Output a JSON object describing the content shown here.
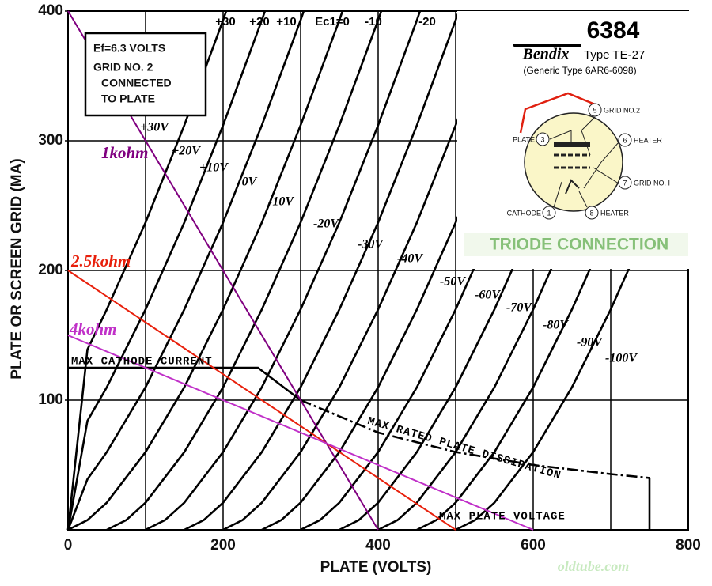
{
  "chart_data": {
    "type": "line",
    "x_label": "PLATE (VOLTS)",
    "y_label": "PLATE OR SCREEN GRID (MA)",
    "xlim": [
      0,
      800
    ],
    "ylim": [
      0,
      400
    ],
    "xticks": [
      0,
      200,
      400,
      600,
      800
    ],
    "yticks": [
      100,
      200,
      300,
      400
    ],
    "x_minor_grid": [
      100,
      300,
      500,
      700
    ],
    "y_grid": [
      100,
      200,
      300
    ],
    "grid": true,
    "curve_color": "#000000",
    "top_labels": [
      "+30",
      "+20",
      "+10",
      "Ec1=0",
      "-10",
      "-20"
    ],
    "note": [
      "Ef=6.3 VOLTS",
      "GRID NO. 2",
      "CONNECTED",
      "TO PLATE"
    ],
    "series": [
      {
        "name": "+30V",
        "x": [
          0,
          25,
          50,
          100,
          150,
          200,
          204
        ],
        "values": [
          0,
          139,
          170,
          237,
          312,
          393,
          400
        ]
      },
      {
        "name": "+20V",
        "x": [
          0,
          25,
          50,
          100,
          150,
          200,
          250,
          254
        ],
        "values": [
          0,
          84,
          110,
          170,
          237,
          312,
          393,
          400
        ]
      },
      {
        "name": "+10V",
        "x": [
          0,
          25,
          50,
          100,
          150,
          200,
          250,
          300,
          304
        ],
        "values": [
          0,
          39,
          60,
          110,
          170,
          237,
          312,
          393,
          400
        ]
      },
      {
        "name": "0V",
        "x": [
          0,
          25,
          50,
          100,
          150,
          200,
          250,
          300,
          350,
          354
        ],
        "values": [
          0,
          7.5,
          21,
          60,
          110,
          170,
          237,
          312,
          393,
          400
        ]
      },
      {
        "name": "-10V",
        "x": [
          50,
          75,
          100,
          150,
          200,
          250,
          300,
          350,
          400,
          404
        ],
        "values": [
          0,
          7.5,
          21,
          60,
          110,
          170,
          237,
          312,
          393,
          400
        ]
      },
      {
        "name": "-20V",
        "x": [
          100,
          125,
          150,
          200,
          250,
          300,
          350,
          400,
          450,
          454
        ],
        "values": [
          0,
          7.5,
          21,
          60,
          110,
          170,
          237,
          312,
          393,
          400
        ]
      },
      {
        "name": "-30V",
        "x": [
          150,
          175,
          200,
          250,
          300,
          350,
          400,
          450,
          500,
          504
        ],
        "values": [
          0,
          7.5,
          21,
          60,
          110,
          170,
          237,
          312,
          393,
          400
        ]
      },
      {
        "name": "-40V",
        "x": [
          200,
          225,
          250,
          300,
          350,
          400,
          450,
          500,
          550,
          554
        ],
        "values": [
          0,
          7.5,
          21,
          60,
          110,
          170,
          237,
          312,
          393,
          400
        ]
      },
      {
        "name": "-50V",
        "x": [
          250,
          275,
          300,
          350,
          400,
          450,
          500,
          550,
          600,
          604
        ],
        "values": [
          0,
          7.5,
          21,
          60,
          110,
          170,
          237,
          312,
          393,
          400
        ]
      },
      {
        "name": "-60V",
        "x": [
          300,
          325,
          350,
          400,
          450,
          500,
          550,
          600,
          650,
          654
        ],
        "values": [
          0,
          7.5,
          21,
          60,
          110,
          170,
          237,
          312,
          393,
          400
        ]
      },
      {
        "name": "-70V",
        "x": [
          350,
          375,
          400,
          450,
          500,
          550,
          600,
          650,
          700,
          704
        ],
        "values": [
          0,
          7.5,
          21,
          60,
          110,
          170,
          237,
          312,
          393,
          400
        ]
      },
      {
        "name": "-80V",
        "x": [
          400,
          425,
          450,
          500,
          550,
          600,
          650,
          700,
          750,
          754
        ],
        "values": [
          0,
          7.5,
          21,
          60,
          110,
          170,
          237,
          312,
          393,
          400
        ]
      },
      {
        "name": "-90V",
        "x": [
          450,
          475,
          500,
          550,
          600,
          650,
          700,
          750,
          800
        ],
        "values": [
          0,
          7.5,
          21,
          60,
          110,
          170,
          237,
          312,
          393
        ]
      },
      {
        "name": "-100V",
        "x": [
          500,
          525,
          550,
          600,
          650,
          700,
          750,
          800
        ],
        "values": [
          0,
          7.5,
          21,
          60,
          110,
          170,
          237,
          312
        ]
      }
    ],
    "load_lines": [
      {
        "name": "1kohm",
        "color": "#800080",
        "x": [
          0,
          400
        ],
        "values": [
          400,
          0
        ]
      },
      {
        "name": "2.5kohm",
        "color": "#e8200c",
        "x": [
          0,
          500
        ],
        "values": [
          200,
          0
        ]
      },
      {
        "name": "4kohm",
        "color": "#c030c8",
        "x": [
          0,
          600
        ],
        "values": [
          150,
          0
        ]
      }
    ],
    "limits": [
      {
        "name": "MAX CATHODE CURRENT",
        "x": [
          0,
          245,
          300
        ],
        "values": [
          125,
          125,
          100
        ]
      },
      {
        "name": "MAX RATED PLATE DISSIPATION",
        "x": [
          300,
          400,
          500,
          600,
          700,
          750
        ],
        "values": [
          100,
          75,
          60,
          50,
          43,
          40
        ]
      },
      {
        "name": "MAX PLATE VOLTAGE",
        "x": [
          750,
          750
        ],
        "values": [
          40,
          0
        ]
      }
    ]
  },
  "datasheet": {
    "number": "6384",
    "brand": "Bendix",
    "type": "Type TE-27",
    "generic": "(Generic Type 6AR6-6098)",
    "pins": [
      {
        "num": "3",
        "label": "PLATE"
      },
      {
        "num": "5",
        "label": "GRID NO.2"
      },
      {
        "num": "6",
        "label": "HEATER"
      },
      {
        "num": "7",
        "label": "GRID NO. I"
      },
      {
        "num": "1",
        "label": "CATHODE"
      },
      {
        "num": "8",
        "label": "HEATER"
      }
    ],
    "connection": "TRIODE CONNECTION"
  },
  "watermark": "oldtube.com"
}
